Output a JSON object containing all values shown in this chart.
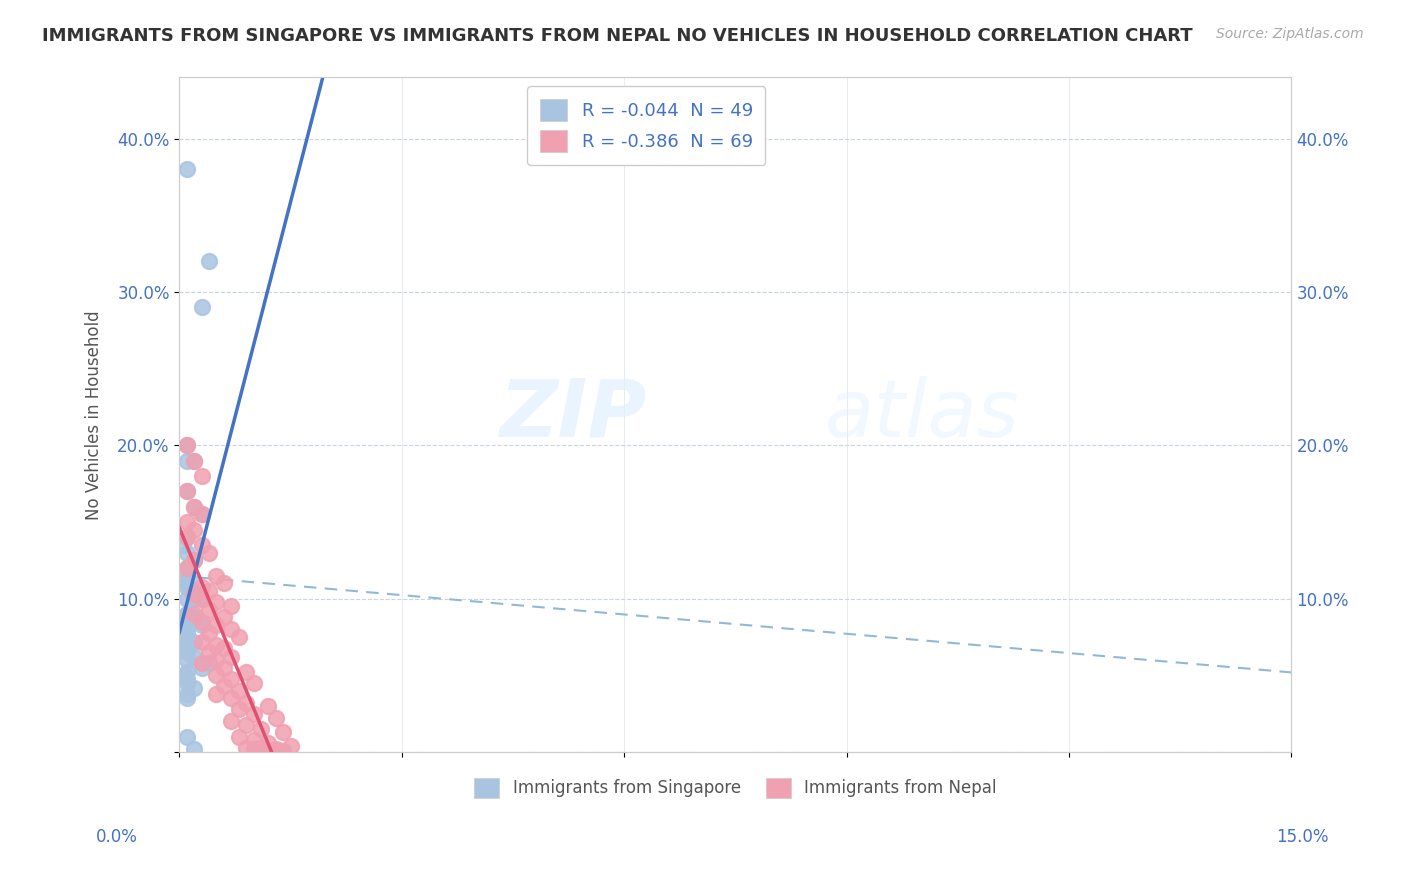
{
  "title": "IMMIGRANTS FROM SINGAPORE VS IMMIGRANTS FROM NEPAL NO VEHICLES IN HOUSEHOLD CORRELATION CHART",
  "source": "Source: ZipAtlas.com",
  "ylabel": "No Vehicles in Household",
  "ytick_vals": [
    0.0,
    0.1,
    0.2,
    0.3,
    0.4
  ],
  "ytick_labels": [
    "",
    "10.0%",
    "20.0%",
    "30.0%",
    "40.0%"
  ],
  "xlim": [
    0,
    0.15
  ],
  "ylim": [
    0,
    0.44
  ],
  "legend_R_singapore": "-0.044",
  "legend_N_singapore": "49",
  "legend_R_nepal": "-0.386",
  "legend_N_nepal": "69",
  "singapore_color": "#a8c4e0",
  "nepal_color": "#f0a0b0",
  "singapore_line_color": "#4472c4",
  "nepal_line_color": "#e05070",
  "dash_line_color": "#90b8d8",
  "watermark_top": "ZIP",
  "watermark_bottom": "atlas",
  "singapore_scatter_x": [
    0.001,
    0.004,
    0.003,
    0.001,
    0.002,
    0.001,
    0.001,
    0.002,
    0.003,
    0.001,
    0.0005,
    0.001,
    0.002,
    0.001,
    0.0008,
    0.001,
    0.002,
    0.001,
    0.0015,
    0.002,
    0.003,
    0.001,
    0.002,
    0.001,
    0.0012,
    0.001,
    0.002,
    0.001,
    0.003,
    0.001,
    0.001,
    0.0005,
    0.002,
    0.001,
    0.001,
    0.001,
    0.002,
    0.001,
    0.004,
    0.003,
    0.001,
    0.0008,
    0.001,
    0.001,
    0.002,
    0.001,
    0.001,
    0.001,
    0.002
  ],
  "singapore_scatter_y": [
    0.38,
    0.32,
    0.29,
    0.2,
    0.19,
    0.19,
    0.17,
    0.16,
    0.155,
    0.14,
    0.135,
    0.13,
    0.125,
    0.12,
    0.115,
    0.11,
    0.11,
    0.108,
    0.105,
    0.1,
    0.1,
    0.1,
    0.1,
    0.09,
    0.09,
    0.09,
    0.088,
    0.085,
    0.083,
    0.08,
    0.078,
    0.075,
    0.072,
    0.07,
    0.068,
    0.065,
    0.062,
    0.06,
    0.058,
    0.055,
    0.052,
    0.05,
    0.048,
    0.045,
    0.042,
    0.038,
    0.035,
    0.01,
    0.002
  ],
  "nepal_scatter_x": [
    0.001,
    0.002,
    0.003,
    0.001,
    0.002,
    0.003,
    0.001,
    0.002,
    0.001,
    0.003,
    0.004,
    0.002,
    0.001,
    0.005,
    0.006,
    0.003,
    0.004,
    0.002,
    0.003,
    0.005,
    0.007,
    0.004,
    0.002,
    0.006,
    0.003,
    0.005,
    0.007,
    0.004,
    0.008,
    0.003,
    0.005,
    0.006,
    0.004,
    0.007,
    0.005,
    0.003,
    0.006,
    0.009,
    0.005,
    0.007,
    0.01,
    0.006,
    0.008,
    0.005,
    0.007,
    0.009,
    0.012,
    0.008,
    0.01,
    0.013,
    0.007,
    0.009,
    0.011,
    0.014,
    0.008,
    0.01,
    0.012,
    0.015,
    0.009,
    0.011,
    0.013,
    0.01,
    0.012,
    0.014,
    0.011,
    0.013,
    0.012,
    0.014,
    0.013
  ],
  "nepal_scatter_y": [
    0.2,
    0.19,
    0.18,
    0.17,
    0.16,
    0.155,
    0.15,
    0.145,
    0.14,
    0.135,
    0.13,
    0.125,
    0.12,
    0.115,
    0.11,
    0.108,
    0.105,
    0.103,
    0.1,
    0.098,
    0.095,
    0.093,
    0.09,
    0.088,
    0.085,
    0.083,
    0.08,
    0.078,
    0.075,
    0.072,
    0.07,
    0.068,
    0.065,
    0.062,
    0.06,
    0.058,
    0.055,
    0.052,
    0.05,
    0.048,
    0.045,
    0.043,
    0.04,
    0.038,
    0.035,
    0.032,
    0.03,
    0.028,
    0.025,
    0.022,
    0.02,
    0.018,
    0.015,
    0.013,
    0.01,
    0.008,
    0.006,
    0.004,
    0.003,
    0.003,
    0.002,
    0.002,
    0.001,
    0.001,
    0.001,
    0.001,
    0.001,
    0.001,
    0.001
  ]
}
